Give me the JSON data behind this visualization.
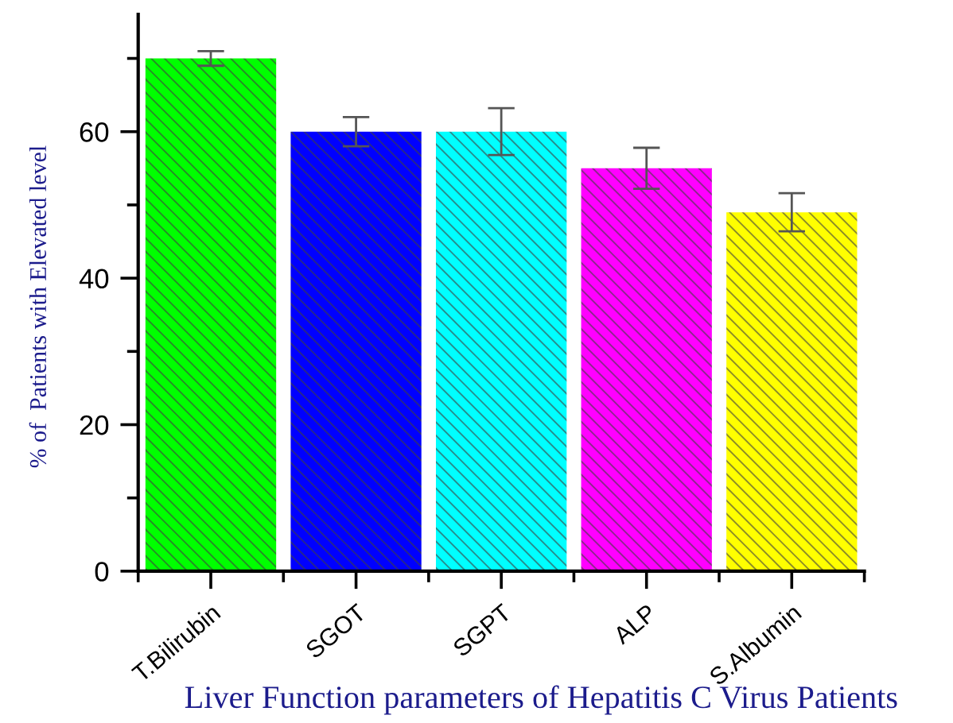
{
  "chart_data": {
    "type": "bar",
    "xlabel": "Liver Function parameters of Hepatitis C Virus Patients",
    "ylabel": "% of  Patients with Elevated level",
    "categories": [
      "T.Bilirubin",
      "SGOT",
      "SGPT",
      "ALP",
      "S.Albumin"
    ],
    "values": [
      70,
      60,
      60,
      55,
      49
    ],
    "colors": [
      "#00ff00",
      "#0000ff",
      "#00ffff",
      "#ff00ff",
      "#ffff00"
    ],
    "errors": [
      1,
      2,
      3.2,
      2.8,
      2.6
    ],
    "ylim": [
      0,
      76
    ],
    "yticks": [
      0,
      {
        "value": 10,
        "label": null
      },
      20,
      {
        "value": 30,
        "label": null
      },
      40,
      {
        "value": 50,
        "label": null
      },
      60,
      {
        "value": 70,
        "label": null
      }
    ]
  }
}
